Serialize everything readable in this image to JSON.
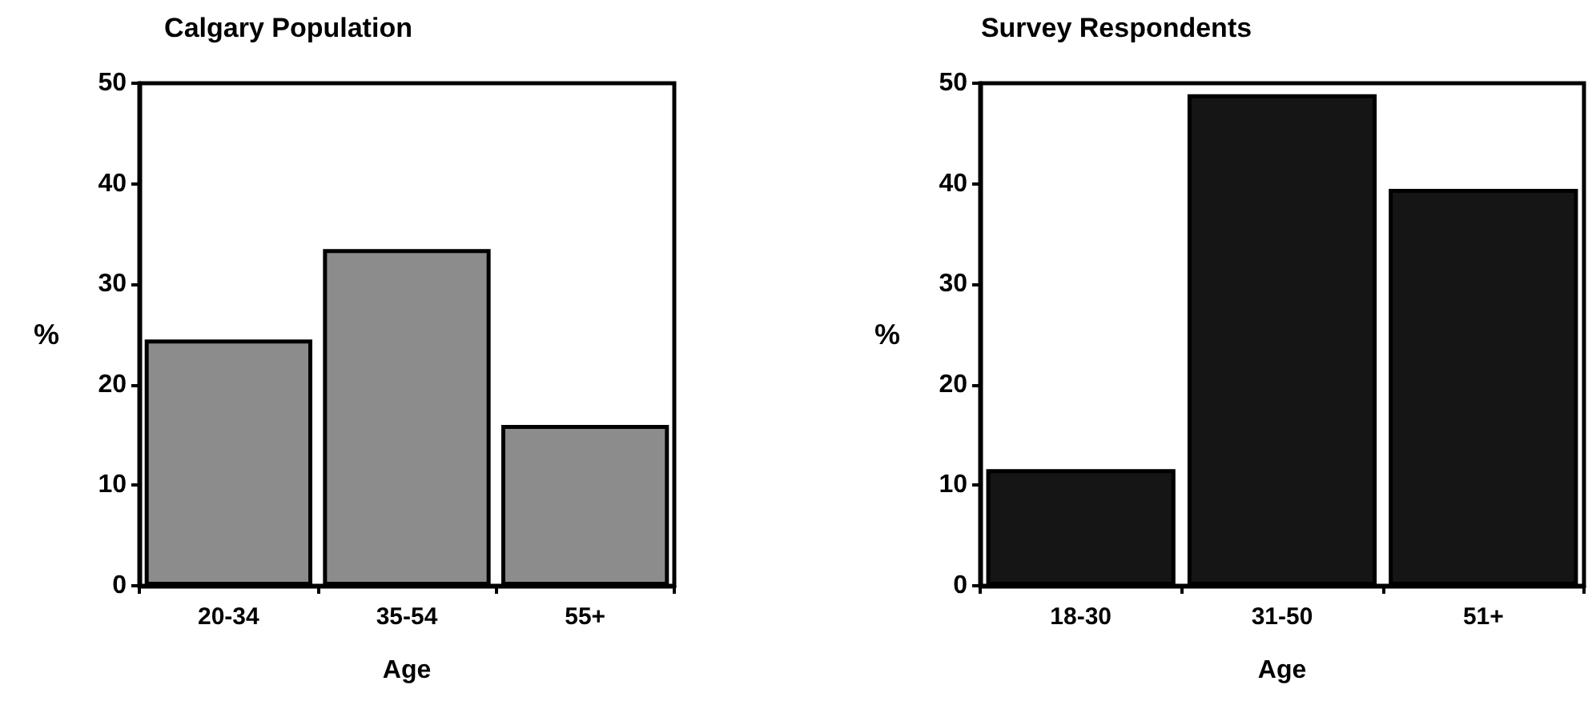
{
  "chart_data": [
    {
      "type": "bar",
      "title": "Calgary Population",
      "xlabel": "Age",
      "ylabel": "%",
      "categories": [
        "20-34",
        "35-54",
        "55+"
      ],
      "values": [
        24.5,
        33.5,
        16
      ],
      "color": "#8c8c8c",
      "ylim": [
        0,
        50
      ],
      "yticks": [
        0,
        10,
        20,
        30,
        40,
        50
      ]
    },
    {
      "type": "bar",
      "title": "Survey Respondents",
      "xlabel": "Age",
      "ylabel": "%",
      "categories": [
        "18-30",
        "31-50",
        "51+"
      ],
      "values": [
        11.6,
        48.9,
        39.5
      ],
      "color": "#151515",
      "ylim": [
        0,
        50
      ],
      "yticks": [
        0,
        10,
        20,
        30,
        40,
        50
      ]
    }
  ]
}
